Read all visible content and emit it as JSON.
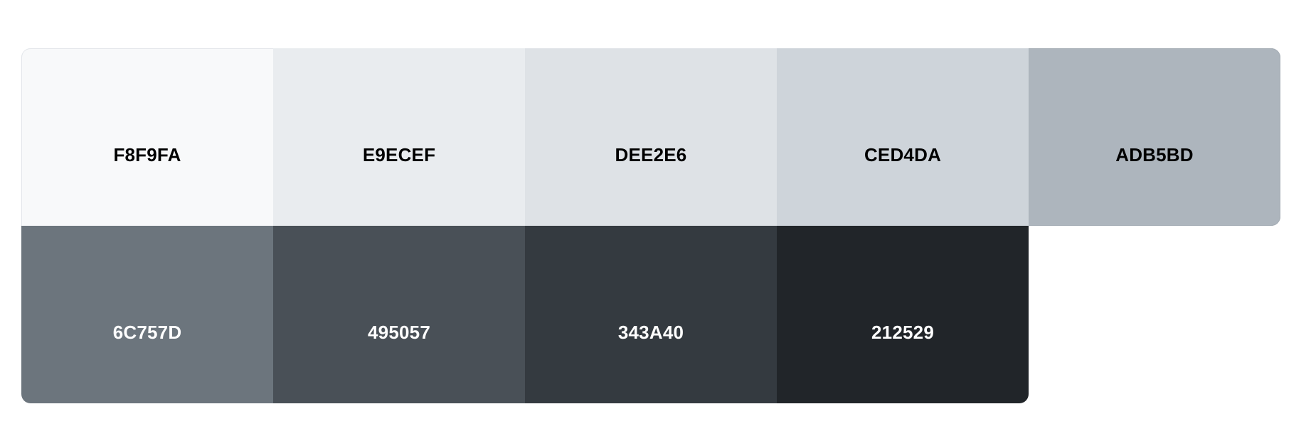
{
  "palette": {
    "rows": [
      [
        {
          "hex": "F8F9FA",
          "color": "#F8F9FA",
          "tone": "light"
        },
        {
          "hex": "E9ECEF",
          "color": "#E9ECEF",
          "tone": "light"
        },
        {
          "hex": "DEE2E6",
          "color": "#DEE2E6",
          "tone": "light"
        },
        {
          "hex": "CED4DA",
          "color": "#CED4DA",
          "tone": "light"
        },
        {
          "hex": "ADB5BD",
          "color": "#ADB5BD",
          "tone": "light"
        }
      ],
      [
        {
          "hex": "6C757D",
          "color": "#6C757D",
          "tone": "dark"
        },
        {
          "hex": "495057",
          "color": "#495057",
          "tone": "dark"
        },
        {
          "hex": "343A40",
          "color": "#343A40",
          "tone": "dark"
        },
        {
          "hex": "212529",
          "color": "#212529",
          "tone": "dark"
        }
      ]
    ]
  }
}
